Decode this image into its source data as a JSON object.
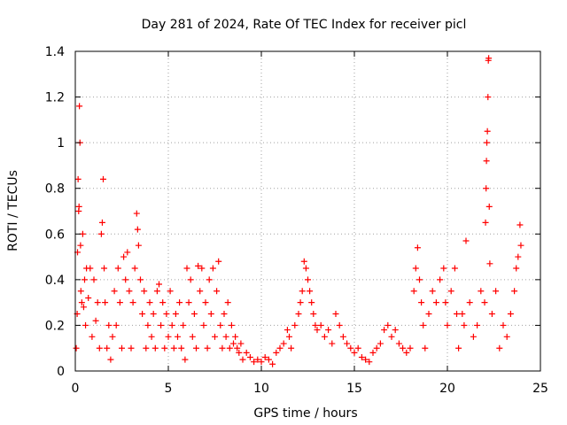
{
  "chart_data": {
    "type": "scatter",
    "title": "Day 281 of 2024, Rate Of TEC Index for receiver picl",
    "xlabel": "GPS time / hours",
    "ylabel": "ROTI / TECUs",
    "xlim": [
      0,
      25
    ],
    "ylim": [
      0,
      1.4
    ],
    "grid": true,
    "marker": "+",
    "color": "#ff0000",
    "x_ticks": [
      0,
      5,
      10,
      15,
      20,
      25
    ],
    "x_tick_labels": [
      "0",
      "5",
      "10",
      "15",
      "20",
      "25"
    ],
    "y_ticks": [
      0,
      0.2,
      0.4,
      0.6,
      0.8,
      1.0,
      1.2,
      1.4
    ],
    "y_tick_labels": [
      "0",
      "0.2",
      "0.4",
      "0.6",
      "0.8",
      "1",
      "1.2",
      "1.4"
    ],
    "series": [
      {
        "name": "ROTI",
        "points": [
          [
            0.05,
            0.1
          ],
          [
            0.1,
            0.25
          ],
          [
            0.12,
            0.52
          ],
          [
            0.15,
            0.84
          ],
          [
            0.18,
            0.7
          ],
          [
            0.2,
            0.72
          ],
          [
            0.22,
            1.16
          ],
          [
            0.25,
            1.0
          ],
          [
            0.28,
            0.55
          ],
          [
            0.3,
            0.35
          ],
          [
            0.35,
            0.3
          ],
          [
            0.4,
            0.6
          ],
          [
            0.45,
            0.28
          ],
          [
            0.5,
            0.4
          ],
          [
            0.55,
            0.2
          ],
          [
            0.6,
            0.45
          ],
          [
            0.7,
            0.32
          ],
          [
            0.8,
            0.45
          ],
          [
            0.9,
            0.15
          ],
          [
            1.0,
            0.4
          ],
          [
            1.1,
            0.22
          ],
          [
            1.2,
            0.3
          ],
          [
            1.3,
            0.1
          ],
          [
            1.4,
            0.6
          ],
          [
            1.45,
            0.65
          ],
          [
            1.5,
            0.84
          ],
          [
            1.55,
            0.45
          ],
          [
            1.6,
            0.3
          ],
          [
            1.7,
            0.1
          ],
          [
            1.8,
            0.2
          ],
          [
            1.9,
            0.05
          ],
          [
            2.0,
            0.15
          ],
          [
            2.1,
            0.35
          ],
          [
            2.2,
            0.2
          ],
          [
            2.3,
            0.45
          ],
          [
            2.4,
            0.3
          ],
          [
            2.5,
            0.1
          ],
          [
            2.6,
            0.5
          ],
          [
            2.7,
            0.4
          ],
          [
            2.8,
            0.52
          ],
          [
            2.9,
            0.35
          ],
          [
            3.0,
            0.1
          ],
          [
            3.1,
            0.3
          ],
          [
            3.2,
            0.45
          ],
          [
            3.3,
            0.69
          ],
          [
            3.35,
            0.62
          ],
          [
            3.4,
            0.55
          ],
          [
            3.5,
            0.4
          ],
          [
            3.6,
            0.25
          ],
          [
            3.7,
            0.35
          ],
          [
            3.8,
            0.1
          ],
          [
            3.9,
            0.2
          ],
          [
            4.0,
            0.3
          ],
          [
            4.1,
            0.15
          ],
          [
            4.2,
            0.25
          ],
          [
            4.3,
            0.1
          ],
          [
            4.4,
            0.35
          ],
          [
            4.5,
            0.38
          ],
          [
            4.6,
            0.2
          ],
          [
            4.7,
            0.3
          ],
          [
            4.8,
            0.1
          ],
          [
            4.9,
            0.25
          ],
          [
            5.0,
            0.15
          ],
          [
            5.1,
            0.35
          ],
          [
            5.2,
            0.2
          ],
          [
            5.3,
            0.1
          ],
          [
            5.4,
            0.25
          ],
          [
            5.5,
            0.15
          ],
          [
            5.6,
            0.3
          ],
          [
            5.7,
            0.1
          ],
          [
            5.8,
            0.2
          ],
          [
            5.9,
            0.05
          ],
          [
            6.0,
            0.45
          ],
          [
            6.1,
            0.3
          ],
          [
            6.2,
            0.4
          ],
          [
            6.3,
            0.15
          ],
          [
            6.4,
            0.25
          ],
          [
            6.5,
            0.1
          ],
          [
            6.6,
            0.46
          ],
          [
            6.7,
            0.35
          ],
          [
            6.8,
            0.45
          ],
          [
            6.9,
            0.2
          ],
          [
            7.0,
            0.3
          ],
          [
            7.1,
            0.1
          ],
          [
            7.2,
            0.4
          ],
          [
            7.3,
            0.25
          ],
          [
            7.4,
            0.45
          ],
          [
            7.5,
            0.15
          ],
          [
            7.6,
            0.35
          ],
          [
            7.7,
            0.48
          ],
          [
            7.8,
            0.2
          ],
          [
            7.9,
            0.1
          ],
          [
            8.0,
            0.25
          ],
          [
            8.1,
            0.15
          ],
          [
            8.2,
            0.3
          ],
          [
            8.3,
            0.1
          ],
          [
            8.4,
            0.2
          ],
          [
            8.5,
            0.12
          ],
          [
            8.6,
            0.15
          ],
          [
            8.7,
            0.1
          ],
          [
            8.8,
            0.08
          ],
          [
            8.9,
            0.12
          ],
          [
            9.0,
            0.05
          ],
          [
            9.2,
            0.08
          ],
          [
            9.4,
            0.06
          ],
          [
            9.6,
            0.04
          ],
          [
            9.8,
            0.05
          ],
          [
            10.0,
            0.04
          ],
          [
            10.2,
            0.06
          ],
          [
            10.4,
            0.05
          ],
          [
            10.6,
            0.03
          ],
          [
            10.8,
            0.08
          ],
          [
            11.0,
            0.1
          ],
          [
            11.2,
            0.12
          ],
          [
            11.4,
            0.18
          ],
          [
            11.5,
            0.15
          ],
          [
            11.6,
            0.1
          ],
          [
            11.8,
            0.2
          ],
          [
            12.0,
            0.25
          ],
          [
            12.1,
            0.3
          ],
          [
            12.2,
            0.35
          ],
          [
            12.3,
            0.48
          ],
          [
            12.4,
            0.45
          ],
          [
            12.5,
            0.4
          ],
          [
            12.6,
            0.35
          ],
          [
            12.7,
            0.3
          ],
          [
            12.8,
            0.25
          ],
          [
            12.9,
            0.2
          ],
          [
            13.0,
            0.18
          ],
          [
            13.2,
            0.2
          ],
          [
            13.4,
            0.15
          ],
          [
            13.6,
            0.18
          ],
          [
            13.8,
            0.12
          ],
          [
            14.0,
            0.25
          ],
          [
            14.2,
            0.2
          ],
          [
            14.4,
            0.15
          ],
          [
            14.6,
            0.12
          ],
          [
            14.8,
            0.1
          ],
          [
            15.0,
            0.08
          ],
          [
            15.2,
            0.1
          ],
          [
            15.4,
            0.06
          ],
          [
            15.6,
            0.05
          ],
          [
            15.8,
            0.04
          ],
          [
            16.0,
            0.08
          ],
          [
            16.2,
            0.1
          ],
          [
            16.4,
            0.12
          ],
          [
            16.6,
            0.18
          ],
          [
            16.8,
            0.2
          ],
          [
            17.0,
            0.15
          ],
          [
            17.2,
            0.18
          ],
          [
            17.4,
            0.12
          ],
          [
            17.6,
            0.1
          ],
          [
            17.8,
            0.08
          ],
          [
            18.0,
            0.1
          ],
          [
            18.2,
            0.35
          ],
          [
            18.3,
            0.45
          ],
          [
            18.4,
            0.54
          ],
          [
            18.5,
            0.4
          ],
          [
            18.6,
            0.3
          ],
          [
            18.7,
            0.2
          ],
          [
            18.8,
            0.1
          ],
          [
            19.0,
            0.25
          ],
          [
            19.2,
            0.35
          ],
          [
            19.4,
            0.3
          ],
          [
            19.6,
            0.4
          ],
          [
            19.8,
            0.45
          ],
          [
            19.9,
            0.3
          ],
          [
            20.0,
            0.2
          ],
          [
            20.2,
            0.35
          ],
          [
            20.4,
            0.45
          ],
          [
            20.5,
            0.25
          ],
          [
            20.6,
            0.1
          ],
          [
            20.8,
            0.25
          ],
          [
            20.9,
            0.2
          ],
          [
            21.0,
            0.57
          ],
          [
            21.2,
            0.3
          ],
          [
            21.4,
            0.15
          ],
          [
            21.6,
            0.2
          ],
          [
            21.8,
            0.35
          ],
          [
            22.0,
            0.3
          ],
          [
            22.05,
            0.65
          ],
          [
            22.08,
            0.8
          ],
          [
            22.1,
            0.92
          ],
          [
            22.12,
            1.0
          ],
          [
            22.15,
            1.05
          ],
          [
            22.18,
            1.2
          ],
          [
            22.2,
            1.36
          ],
          [
            22.22,
            1.37
          ],
          [
            22.25,
            0.72
          ],
          [
            22.28,
            0.47
          ],
          [
            22.4,
            0.25
          ],
          [
            22.6,
            0.35
          ],
          [
            22.8,
            0.1
          ],
          [
            23.0,
            0.2
          ],
          [
            23.2,
            0.15
          ],
          [
            23.4,
            0.25
          ],
          [
            23.6,
            0.35
          ],
          [
            23.7,
            0.45
          ],
          [
            23.8,
            0.5
          ],
          [
            23.9,
            0.64
          ],
          [
            23.95,
            0.55
          ]
        ]
      }
    ]
  }
}
